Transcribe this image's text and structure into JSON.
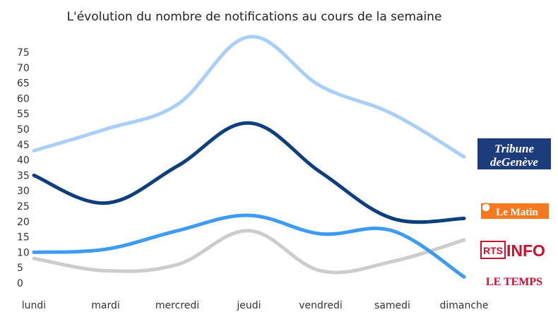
{
  "chart_data": {
    "type": "line",
    "title": "L'évolution du nombre de notifications au cours de la semaine",
    "categories": [
      "lundi",
      "mardi",
      "mercredi",
      "jeudi",
      "vendredi",
      "samedi",
      "dimanche"
    ],
    "yticks": [
      "0",
      "5",
      "10",
      "15",
      "20",
      "25",
      "30",
      "35",
      "40",
      "45",
      "50",
      "55",
      "60",
      "65",
      "70",
      "75"
    ],
    "ylim": [
      0,
      80
    ],
    "grid": false,
    "legend": "right",
    "series": [
      {
        "name": "Tribune de Genève",
        "color": "#a8cff7",
        "values": [
          43,
          50,
          58,
          80,
          64,
          55,
          41
        ]
      },
      {
        "name": "Le Matin",
        "color": "#0e3f7a",
        "values": [
          35,
          26,
          38,
          52,
          36,
          21,
          21
        ]
      },
      {
        "name": "RTS Info",
        "color": "#3d9bf0",
        "values": [
          10,
          11,
          17,
          22,
          16,
          17,
          2
        ]
      },
      {
        "name": "Le Temps",
        "color": "#cccccc",
        "values": [
          8,
          4,
          6,
          17,
          4,
          7,
          14
        ]
      }
    ],
    "legend_logos": {
      "tdg": {
        "line1": "Tribune",
        "line2": "deGenève",
        "bg": "#1c3c7c"
      },
      "matin": {
        "label": "Le Matin",
        "bg": "#f47920"
      },
      "rts": {
        "part1": "RTS",
        "part2": "INFO",
        "color": "#c8102e"
      },
      "temps": {
        "label": "LE TEMPS",
        "color": "#c8102e"
      }
    }
  }
}
